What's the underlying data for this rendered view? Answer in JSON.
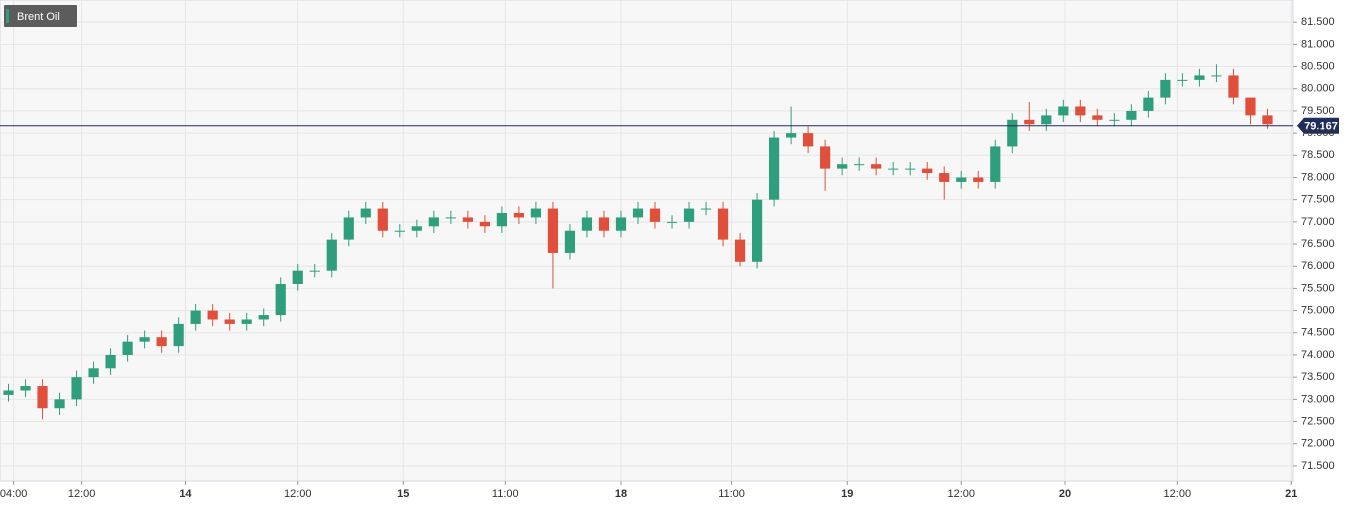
{
  "chart_data": {
    "type": "candlestick",
    "series_name": "Brent Oil",
    "up_color": "#2f9e7c",
    "down_color": "#df4f3c",
    "open": [
      73.1,
      73.2,
      73.3,
      72.8,
      73.0,
      73.5,
      73.7,
      74.0,
      74.3,
      74.4,
      74.2,
      74.7,
      75.0,
      74.8,
      74.7,
      74.8,
      74.9,
      75.6,
      75.9,
      75.9,
      76.6,
      77.1,
      77.3,
      76.8,
      76.8,
      76.9,
      77.1,
      77.1,
      77.0,
      76.9,
      77.2,
      77.1,
      77.3,
      76.3,
      76.8,
      77.1,
      76.8,
      77.1,
      77.3,
      77.0,
      77.0,
      77.3,
      77.3,
      76.6,
      76.1,
      77.5,
      78.9,
      79.0,
      78.7,
      78.2,
      78.3,
      78.3,
      78.2,
      78.2,
      78.2,
      78.1,
      77.9,
      78.0,
      77.9,
      78.7,
      79.3,
      79.2,
      79.4,
      79.6,
      79.4,
      79.3,
      79.3,
      79.5,
      79.8,
      80.2,
      80.2,
      80.3,
      80.3,
      79.8,
      79.4
    ],
    "high": [
      73.35,
      73.45,
      73.45,
      73.15,
      73.65,
      73.85,
      74.15,
      74.45,
      74.55,
      74.55,
      74.85,
      75.15,
      75.15,
      74.95,
      74.95,
      75.05,
      75.75,
      76.05,
      76.05,
      76.75,
      77.25,
      77.45,
      77.45,
      76.95,
      77.05,
      77.25,
      77.25,
      77.25,
      77.15,
      77.35,
      77.35,
      77.45,
      77.45,
      76.95,
      77.25,
      77.25,
      77.25,
      77.45,
      77.45,
      77.15,
      77.45,
      77.45,
      77.45,
      76.75,
      77.65,
      79.05,
      79.6,
      79.15,
      78.85,
      78.45,
      78.45,
      78.45,
      78.35,
      78.35,
      78.35,
      78.25,
      78.15,
      78.15,
      78.85,
      79.45,
      79.7,
      79.55,
      79.75,
      79.75,
      79.55,
      79.45,
      79.65,
      79.95,
      80.35,
      80.35,
      80.45,
      80.55,
      80.45,
      79.8,
      79.55
    ],
    "low": [
      72.95,
      73.05,
      72.55,
      72.65,
      72.85,
      73.35,
      73.55,
      73.85,
      74.15,
      74.05,
      74.05,
      74.55,
      74.65,
      74.55,
      74.55,
      74.65,
      74.75,
      75.45,
      75.75,
      75.75,
      76.45,
      76.95,
      76.65,
      76.65,
      76.65,
      76.75,
      76.95,
      76.85,
      76.75,
      76.75,
      76.95,
      76.95,
      75.5,
      76.15,
      76.65,
      76.65,
      76.65,
      76.95,
      76.85,
      76.85,
      76.85,
      77.15,
      76.45,
      76.0,
      75.95,
      77.35,
      78.75,
      78.55,
      77.7,
      78.05,
      78.15,
      78.05,
      78.05,
      78.05,
      77.95,
      77.5,
      77.75,
      77.75,
      77.75,
      78.55,
      79.05,
      79.05,
      79.25,
      79.25,
      79.15,
      79.15,
      79.15,
      79.35,
      79.65,
      80.05,
      80.05,
      80.15,
      79.65,
      79.2,
      79.1
    ],
    "close": [
      73.2,
      73.3,
      72.8,
      73.0,
      73.5,
      73.7,
      74.0,
      74.3,
      74.4,
      74.2,
      74.7,
      75.0,
      74.8,
      74.7,
      74.8,
      74.9,
      75.6,
      75.9,
      75.9,
      76.6,
      77.1,
      77.3,
      76.8,
      76.8,
      76.9,
      77.1,
      77.1,
      77.0,
      76.9,
      77.2,
      77.1,
      77.3,
      76.3,
      76.8,
      77.1,
      76.8,
      77.1,
      77.3,
      77.0,
      77.0,
      77.3,
      77.3,
      76.6,
      76.1,
      77.5,
      78.9,
      79.0,
      78.7,
      78.2,
      78.3,
      78.3,
      78.2,
      78.2,
      78.2,
      78.1,
      77.9,
      78.0,
      77.9,
      78.7,
      79.3,
      79.2,
      79.4,
      79.6,
      79.4,
      79.3,
      79.3,
      79.5,
      79.8,
      80.2,
      80.2,
      80.3,
      80.3,
      79.8,
      79.4,
      79.2
    ],
    "last_price": 79.167,
    "last_price_color": "#1e2d5c",
    "xlim": [
      -0.5,
      75.5
    ],
    "xticks": [
      {
        "value": 0.3,
        "label": "04:00"
      },
      {
        "value": 4.3,
        "label": "12:00"
      },
      {
        "value": 10.4,
        "label": "14"
      },
      {
        "value": 17.0,
        "label": "12:00"
      },
      {
        "value": 23.2,
        "label": "15"
      },
      {
        "value": 29.2,
        "label": "11:00"
      },
      {
        "value": 36.0,
        "label": "18"
      },
      {
        "value": 42.5,
        "label": "11:00"
      },
      {
        "value": 49.3,
        "label": "19"
      },
      {
        "value": 56.0,
        "label": "12:00"
      },
      {
        "value": 62.1,
        "label": "20"
      },
      {
        "value": 68.7,
        "label": "12:00"
      },
      {
        "value": 75.4,
        "label": "21"
      }
    ],
    "ylim": [
      71.16,
      82.0
    ],
    "yticks": [
      {
        "value": 81.5,
        "label": "81.500"
      },
      {
        "value": 81.0,
        "label": "81.000"
      },
      {
        "value": 80.5,
        "label": "80.500"
      },
      {
        "value": 80.0,
        "label": "80.000"
      },
      {
        "value": 79.5,
        "label": "79.500"
      },
      {
        "value": 79.0,
        "label": "79.000"
      },
      {
        "value": 78.5,
        "label": "78.500"
      },
      {
        "value": 78.0,
        "label": "78.000"
      },
      {
        "value": 77.5,
        "label": "77.500"
      },
      {
        "value": 77.0,
        "label": "77.000"
      },
      {
        "value": 76.5,
        "label": "76.500"
      },
      {
        "value": 76.0,
        "label": "76.000"
      },
      {
        "value": 75.5,
        "label": "75.500"
      },
      {
        "value": 75.0,
        "label": "75.000"
      },
      {
        "value": 74.5,
        "label": "74.500"
      },
      {
        "value": 74.0,
        "label": "74.000"
      },
      {
        "value": 73.5,
        "label": "73.500"
      },
      {
        "value": 73.0,
        "label": "73.000"
      },
      {
        "value": 72.5,
        "label": "72.500"
      },
      {
        "value": 72.0,
        "label": "72.000"
      },
      {
        "value": 71.5,
        "label": "71.500"
      }
    ],
    "grid": true
  }
}
